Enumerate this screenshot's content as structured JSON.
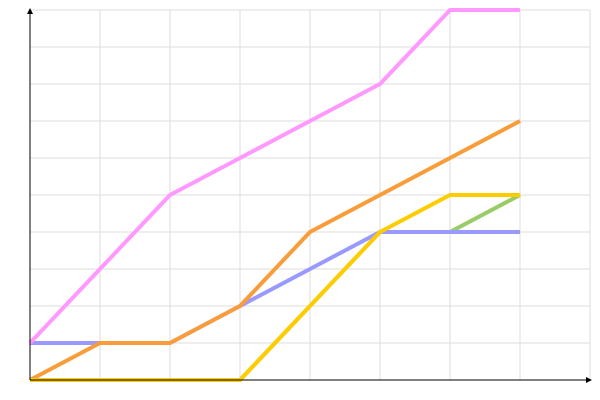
{
  "chart_data": {
    "type": "line",
    "x": [
      0,
      1,
      2,
      3,
      4,
      5,
      6,
      7
    ],
    "series": [
      {
        "color": "#99cc66",
        "values": [
          0,
          0,
          0,
          0,
          2,
          4,
          4,
          5
        ]
      },
      {
        "color": "#9999ff",
        "values": [
          1,
          1,
          1,
          2,
          3,
          4,
          4,
          4
        ]
      },
      {
        "color": "#f99d3a",
        "values": [
          0,
          1,
          1,
          2,
          4,
          5,
          6,
          7
        ]
      },
      {
        "color": "#ffcc00",
        "values": [
          0,
          0,
          0,
          0,
          2,
          4,
          5,
          5
        ]
      },
      {
        "color": "#ff99ff",
        "values": [
          1,
          3,
          5,
          6,
          7,
          8,
          10,
          10
        ]
      }
    ],
    "xlim": [
      0,
      8
    ],
    "ylim": [
      0,
      10
    ],
    "xticks": [
      0,
      1,
      2,
      3,
      4,
      5,
      6,
      7,
      8
    ],
    "yticks": [
      0,
      1,
      2,
      3,
      4,
      5,
      6,
      7,
      8,
      9,
      10
    ],
    "grid": true
  }
}
